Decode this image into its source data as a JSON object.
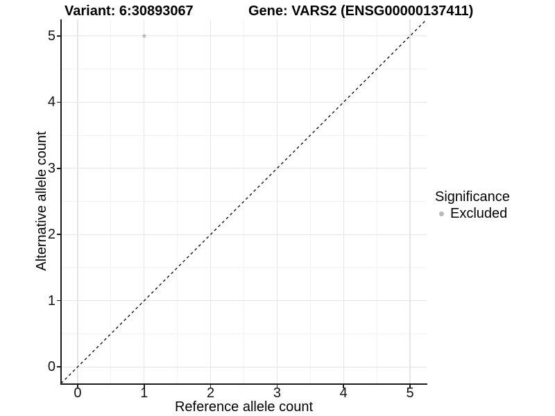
{
  "chart_data": {
    "type": "scatter",
    "titles": {
      "left": "Variant: 6:30893067",
      "right": "Gene: VARS2 (ENSG00000137411)"
    },
    "xlabel": "Reference allele count",
    "ylabel": "Alternative allele count",
    "xlim": [
      -0.25,
      5.25
    ],
    "ylim": [
      -0.25,
      5.25
    ],
    "x_ticks": [
      0,
      1,
      2,
      3,
      4,
      5
    ],
    "y_ticks": [
      0,
      1,
      2,
      3,
      4,
      5
    ],
    "minor_ticks": [
      0.5,
      1.5,
      2.5,
      3.5,
      4.5
    ],
    "grid": "major+minor",
    "points": [
      {
        "x": 1,
        "y": 5,
        "series": "Excluded"
      }
    ],
    "reference_line": {
      "kind": "identity y=x",
      "style": "dashed",
      "from": -0.25,
      "to": 5.25
    },
    "legend": {
      "position": "right",
      "title": "Significance",
      "items": [
        {
          "label": "Excluded",
          "marker": "circle",
          "color": "#b9b9b9"
        }
      ]
    },
    "colors": {
      "background": "#ffffff",
      "grid_major": "#e5e5e5",
      "grid_minor": "#f2f2f2",
      "axis_line": "#1a1a1a",
      "text": "#111111",
      "point": "#bdbdbd",
      "reference_line": "#000000"
    }
  }
}
